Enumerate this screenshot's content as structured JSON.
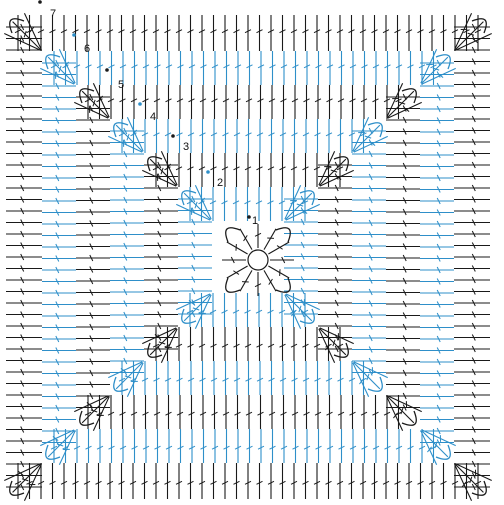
{
  "diagram": {
    "colors": {
      "dark": "#1a1a1a",
      "blue": "#2e8fc9",
      "background": "#ffffff"
    },
    "stitch_symbols": [
      "chain-oval-icon",
      "double-crochet-icon",
      "slip-stitch-dot-icon"
    ],
    "rounds": [
      {
        "label": "1",
        "color": "dark"
      },
      {
        "label": "2",
        "color": "blue"
      },
      {
        "label": "3",
        "color": "dark"
      },
      {
        "label": "4",
        "color": "blue"
      },
      {
        "label": "5",
        "color": "dark"
      },
      {
        "label": "6",
        "color": "blue"
      },
      {
        "label": "7",
        "color": "dark"
      }
    ]
  }
}
